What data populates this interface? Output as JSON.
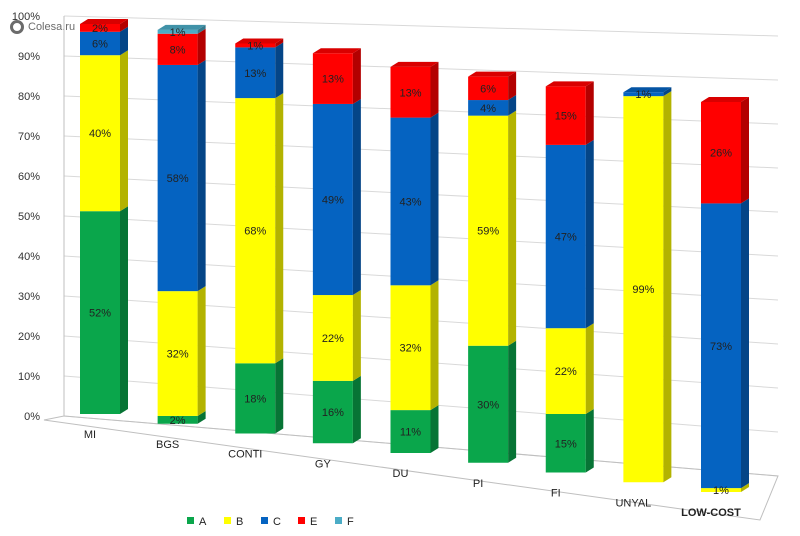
{
  "watermark": "Colesa.ru",
  "chart_data": {
    "type": "bar",
    "stacked": true,
    "percent_stacked": true,
    "three_d": true,
    "categories": [
      "MI",
      "BGS",
      "CONTI",
      "GY",
      "DU",
      "PI",
      "FI",
      "UNYAL",
      "LOW-COST"
    ],
    "category_bold": [
      false,
      false,
      false,
      false,
      false,
      false,
      false,
      false,
      true
    ],
    "y_ticks": [
      "0%",
      "10%",
      "20%",
      "30%",
      "40%",
      "50%",
      "60%",
      "70%",
      "80%",
      "90%",
      "100%"
    ],
    "ylim": [
      0,
      100
    ],
    "grid": true,
    "legend_position": "bottom",
    "series": [
      {
        "name": "A",
        "color": "#0aa64b",
        "values": [
          52,
          2,
          18,
          16,
          11,
          30,
          15,
          0,
          0
        ],
        "labels": [
          "52%",
          "2%",
          "18%",
          "16%",
          "11%",
          "30%",
          "15%",
          "",
          ""
        ]
      },
      {
        "name": "B",
        "color": "#ffff00",
        "values": [
          40,
          32,
          68,
          22,
          32,
          59,
          22,
          99,
          1
        ],
        "labels": [
          "40%",
          "32%",
          "68%",
          "22%",
          "32%",
          "59%",
          "22%",
          "99%",
          "1%"
        ]
      },
      {
        "name": "C",
        "color": "#0563c1",
        "values": [
          6,
          58,
          13,
          49,
          43,
          4,
          47,
          1,
          73
        ],
        "labels": [
          "6%",
          "58%",
          "13%",
          "49%",
          "43%",
          "4%",
          "47%",
          "1%",
          "73%"
        ]
      },
      {
        "name": "E",
        "color": "#ff0000",
        "values": [
          2,
          8,
          1,
          13,
          13,
          6,
          15,
          0,
          26
        ],
        "labels": [
          "2%",
          "8%",
          "1%",
          "13%",
          "13%",
          "6%",
          "15%",
          "",
          "26%"
        ]
      },
      {
        "name": "F",
        "color": "#4bacc6",
        "values": [
          0,
          1,
          0,
          0,
          0,
          0,
          0,
          0,
          0
        ],
        "labels": [
          "",
          "1%",
          "",
          "",
          "",
          "",
          "",
          "",
          ""
        ]
      }
    ]
  }
}
